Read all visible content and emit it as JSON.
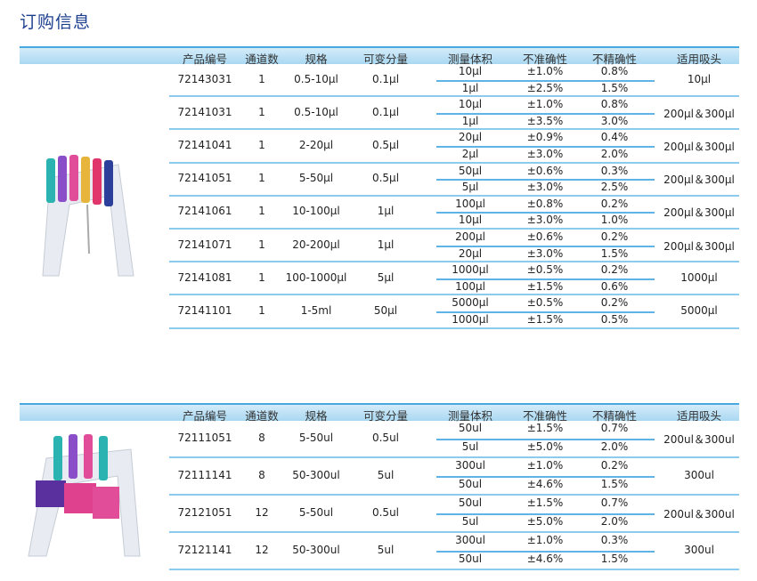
{
  "title": "订购信息",
  "headers": [
    "产品编号",
    "通道数",
    "规格",
    "可变分量",
    "测量体积",
    "不准确性",
    "不精确性",
    "适用吸头"
  ],
  "colors": {
    "title": "#1d3f8f",
    "header_bg": "#a9d8f2",
    "divider": "#5fb3e6"
  },
  "table1": {
    "rows": [
      {
        "code": "72143031",
        "channels": "1",
        "range": "0.5-10μl",
        "increment": "0.1μl",
        "volumes": [
          "10μl",
          "1μl"
        ],
        "accuracy": [
          "±1.0%",
          "±2.5%"
        ],
        "precision": [
          "0.8%",
          "1.5%"
        ],
        "tips": "10μl"
      },
      {
        "code": "72141031",
        "channels": "1",
        "range": "0.5-10μl",
        "increment": "0.1μl",
        "volumes": [
          "10μl",
          "1μl"
        ],
        "accuracy": [
          "±1.0%",
          "±3.5%"
        ],
        "precision": [
          "0.8%",
          "3.0%"
        ],
        "tips": "200μl＆300μl"
      },
      {
        "code": "72141041",
        "channels": "1",
        "range": "2-20μl",
        "increment": "0.5μl",
        "volumes": [
          "20μl",
          "2μl"
        ],
        "accuracy": [
          "±0.9%",
          "±3.0%"
        ],
        "precision": [
          "0.4%",
          "2.0%"
        ],
        "tips": "200μl＆300μl"
      },
      {
        "code": "72141051",
        "channels": "1",
        "range": "5-50μl",
        "increment": "0.5μl",
        "volumes": [
          "50μl",
          "5μl"
        ],
        "accuracy": [
          "±0.6%",
          "±3.0%"
        ],
        "precision": [
          "0.3%",
          "2.5%"
        ],
        "tips": "200μl＆300μl"
      },
      {
        "code": "72141061",
        "channels": "1",
        "range": "10-100μl",
        "increment": "1μl",
        "volumes": [
          "100μl",
          "10μl"
        ],
        "accuracy": [
          "±0.8%",
          "±3.0%"
        ],
        "precision": [
          "0.2%",
          "1.0%"
        ],
        "tips": "200μl＆300μl"
      },
      {
        "code": "72141071",
        "channels": "1",
        "range": "20-200μl",
        "increment": "1μl",
        "volumes": [
          "200μl",
          "20μl"
        ],
        "accuracy": [
          "±0.6%",
          "±3.0%"
        ],
        "precision": [
          "0.2%",
          "1.5%"
        ],
        "tips": "200μl＆300μl"
      },
      {
        "code": "72141081",
        "channels": "1",
        "range": "100-1000μl",
        "increment": "5μl",
        "volumes": [
          "1000μl",
          "100μl"
        ],
        "accuracy": [
          "±0.5%",
          "±1.5%"
        ],
        "precision": [
          "0.2%",
          "0.6%"
        ],
        "tips": "1000μl"
      },
      {
        "code": "72141101",
        "channels": "1",
        "range": "1-5ml",
        "increment": "50μl",
        "volumes": [
          "5000μl",
          "1000μl"
        ],
        "accuracy": [
          "±0.5%",
          "±1.5%"
        ],
        "precision": [
          "0.2%",
          "0.5%"
        ],
        "tips": "5000μl"
      }
    ]
  },
  "table2": {
    "rows": [
      {
        "code": "72111051",
        "channels": "8",
        "range": "5-50ul",
        "increment": "0.5ul",
        "volumes": [
          "50ul",
          "5ul"
        ],
        "accuracy": [
          "±1.5%",
          "±5.0%"
        ],
        "precision": [
          "0.7%",
          "2.0%"
        ],
        "tips": "200ul＆300ul"
      },
      {
        "code": "72111141",
        "channels": "8",
        "range": "50-300ul",
        "increment": "5ul",
        "volumes": [
          "300ul",
          "50ul"
        ],
        "accuracy": [
          "±1.0%",
          "±4.6%"
        ],
        "precision": [
          "0.2%",
          "1.5%"
        ],
        "tips": "300ul"
      },
      {
        "code": "72121051",
        "channels": "12",
        "range": "5-50ul",
        "increment": "0.5ul",
        "volumes": [
          "50ul",
          "5ul"
        ],
        "accuracy": [
          "±1.5%",
          "±5.0%"
        ],
        "precision": [
          "0.7%",
          "2.0%"
        ],
        "tips": "200ul＆300ul"
      },
      {
        "code": "72121141",
        "channels": "12",
        "range": "50-300ul",
        "increment": "5ul",
        "volumes": [
          "300ul",
          "50ul"
        ],
        "accuracy": [
          "±1.0%",
          "±4.6%"
        ],
        "precision": [
          "0.3%",
          "1.5%"
        ],
        "tips": "300ul"
      }
    ]
  }
}
